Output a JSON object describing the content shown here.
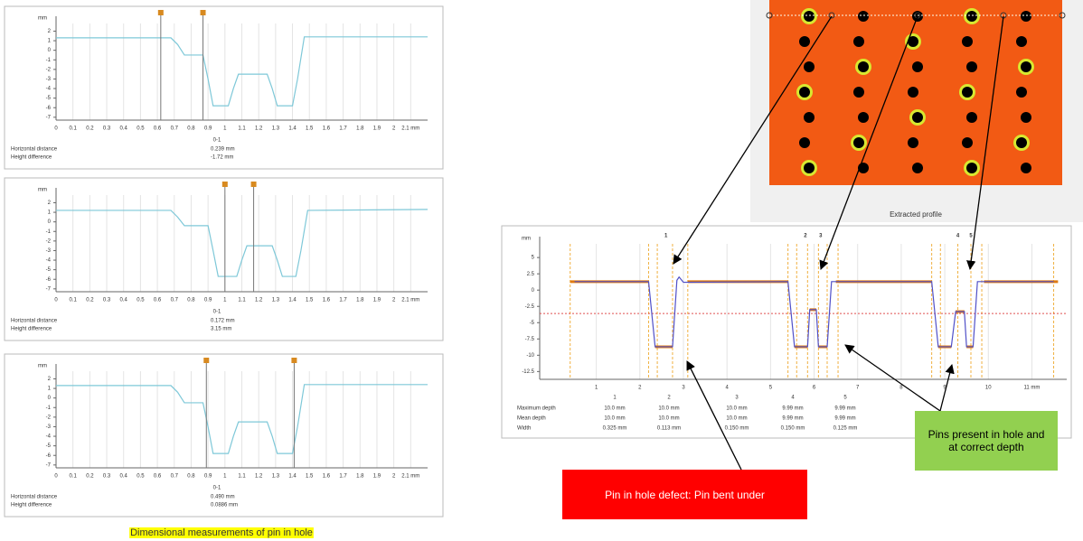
{
  "chart_data": [
    {
      "type": "line",
      "y_unit": "mm",
      "grid": true,
      "xlim": [
        0,
        2.2
      ],
      "ylim": [
        -7.3,
        2.8
      ],
      "xticks": [
        0,
        0.1,
        0.2,
        0.3,
        0.4,
        0.5,
        0.6,
        0.7,
        0.8,
        0.9,
        1,
        1.1,
        1.2,
        1.3,
        1.4,
        1.5,
        1.6,
        1.7,
        1.8,
        1.9,
        2,
        {
          "value": 2.1,
          "label": "2.1 mm"
        }
      ],
      "yticks": [
        2,
        1,
        0,
        -1,
        -2,
        -3,
        -4,
        -5,
        -6,
        -7
      ],
      "series": [
        {
          "color": "#7ec8d8",
          "x": [
            0,
            0.68,
            0.72,
            0.76,
            0.87,
            0.9,
            0.93,
            1.02,
            1.05,
            1.08,
            1.25,
            1.28,
            1.31,
            1.4,
            1.43,
            1.47,
            2.2
          ],
          "values": [
            1.3,
            1.3,
            0.6,
            -0.5,
            -0.5,
            -3,
            -5.8,
            -5.8,
            -4,
            -2.5,
            -2.5,
            -4,
            -5.8,
            -5.8,
            -3,
            1.4,
            1.4
          ]
        }
      ],
      "cursors": [
        0.62,
        0.87
      ],
      "measurement": {
        "label": "0-1",
        "rows": [
          [
            "Horizontal distance",
            "0.239 mm"
          ],
          [
            "Height difference",
            "-1.72 mm"
          ]
        ]
      }
    },
    {
      "type": "line",
      "y_unit": "mm",
      "grid": true,
      "xlim": [
        0,
        2.2
      ],
      "ylim": [
        -7.3,
        2.8
      ],
      "xticks": [
        0,
        0.1,
        0.2,
        0.3,
        0.4,
        0.5,
        0.6,
        0.7,
        0.8,
        0.9,
        1,
        1.1,
        1.2,
        1.3,
        1.4,
        1.5,
        1.6,
        1.7,
        1.8,
        1.9,
        2,
        {
          "value": 2.1,
          "label": "2.1 mm"
        }
      ],
      "yticks": [
        2,
        1,
        0,
        -1,
        -2,
        -3,
        -4,
        -5,
        -6,
        -7
      ],
      "series": [
        {
          "color": "#7ec8d8",
          "x": [
            0,
            0.68,
            0.72,
            0.76,
            0.9,
            0.93,
            0.96,
            1.07,
            1.1,
            1.13,
            1.28,
            1.31,
            1.34,
            1.42,
            1.45,
            1.49,
            2.2
          ],
          "values": [
            1.2,
            1.2,
            0.5,
            -0.4,
            -0.4,
            -3,
            -5.7,
            -5.7,
            -4,
            -2.5,
            -2.5,
            -4,
            -5.7,
            -5.7,
            -3,
            1.2,
            1.3
          ]
        }
      ],
      "cursors": [
        1.0,
        1.17
      ],
      "measurement": {
        "label": "0-1",
        "rows": [
          [
            "Horizontal distance",
            "0.172 mm"
          ],
          [
            "Height difference",
            "3.15 mm"
          ]
        ]
      }
    },
    {
      "type": "line",
      "y_unit": "mm",
      "grid": true,
      "xlim": [
        0,
        2.2
      ],
      "ylim": [
        -7.3,
        2.8
      ],
      "xticks": [
        0,
        0.1,
        0.2,
        0.3,
        0.4,
        0.5,
        0.6,
        0.7,
        0.8,
        0.9,
        1,
        1.1,
        1.2,
        1.3,
        1.4,
        1.5,
        1.6,
        1.7,
        1.8,
        1.9,
        2,
        {
          "value": 2.1,
          "label": "2.1 mm"
        }
      ],
      "yticks": [
        2,
        1,
        0,
        -1,
        -2,
        -3,
        -4,
        -5,
        -6,
        -7
      ],
      "series": [
        {
          "color": "#7ec8d8",
          "x": [
            0,
            0.68,
            0.72,
            0.76,
            0.87,
            0.9,
            0.93,
            1.02,
            1.05,
            1.08,
            1.25,
            1.28,
            1.31,
            1.4,
            1.43,
            1.47,
            2.2
          ],
          "values": [
            1.3,
            1.3,
            0.6,
            -0.5,
            -0.5,
            -3,
            -5.8,
            -5.8,
            -4,
            -2.5,
            -2.5,
            -4,
            -5.8,
            -5.8,
            -3,
            1.4,
            1.4
          ]
        }
      ],
      "cursors": [
        0.89,
        1.41
      ],
      "measurement": {
        "label": "0-1",
        "rows": [
          [
            "Horizontal distance",
            "0.490 mm"
          ],
          [
            "Height difference",
            "0.0886 mm"
          ]
        ]
      }
    },
    {
      "type": "line",
      "y_unit": "mm",
      "grid": true,
      "xlim": [
        -0.3,
        11.8
      ],
      "ylim": [
        -13.7,
        7.1
      ],
      "xticks": [
        1,
        2,
        3,
        4,
        5,
        6,
        7,
        8,
        9,
        10,
        {
          "value": 11,
          "label": "11 mm"
        }
      ],
      "yticks": [
        5,
        2.5,
        0,
        -2.5,
        -5,
        -7.5,
        -10,
        -12.5
      ],
      "series": [
        {
          "color": "#e07b10",
          "x": [
            0.4,
            2.2,
            null,
            2.35,
            2.75,
            null,
            3.1,
            5.4,
            null,
            5.55,
            5.85,
            null,
            5.9,
            6.05,
            null,
            6.1,
            6.3,
            null,
            6.5,
            8.7,
            null,
            8.85,
            9.15,
            null,
            9.25,
            9.45,
            null,
            9.5,
            9.65,
            null,
            9.9,
            11.6
          ],
          "values": [
            1.3,
            1.3,
            null,
            -8.7,
            -8.7,
            null,
            1.3,
            1.3,
            null,
            -8.7,
            -8.7,
            null,
            -3,
            -3,
            null,
            -8.7,
            -8.7,
            null,
            1.3,
            1.3,
            null,
            -8.7,
            -8.7,
            null,
            -3.3,
            -3.3,
            null,
            -8.7,
            -8.7,
            null,
            1.3,
            1.3
          ]
        },
        {
          "color": "#5050c8",
          "x": [
            0.5,
            2.2,
            2.35,
            2.75,
            2.85,
            2.9,
            3,
            5.4,
            5.55,
            5.85,
            5.9,
            6.05,
            6.1,
            6.3,
            6.4,
            8.7,
            8.85,
            9.15,
            9.25,
            9.45,
            9.5,
            9.65,
            9.75,
            11.5
          ],
          "values": [
            1.3,
            1.3,
            -8.7,
            -8.7,
            1.5,
            2.0,
            1.2,
            1.3,
            -8.7,
            -8.7,
            -3,
            -3,
            -8.7,
            -8.7,
            1.3,
            1.3,
            -8.7,
            -8.7,
            -3.3,
            -3.3,
            -8.7,
            -8.7,
            1.3,
            1.3
          ]
        }
      ],
      "reference_lines": [
        {
          "value": -3.6,
          "color": "#e05050"
        }
      ],
      "markers": [
        0.4,
        2.2,
        2.4,
        2.75,
        3.1,
        5.4,
        5.6,
        5.85,
        6.1,
        6.3,
        6.55,
        8.7,
        8.9,
        9.3,
        9.6,
        9.85,
        11.5
      ],
      "annotations": [
        {
          "text": "1",
          "x": 2.6
        },
        {
          "text": "2",
          "x": 5.8
        },
        {
          "text": "3",
          "x": 6.15
        },
        {
          "text": "4",
          "x": 9.3
        },
        {
          "text": "5",
          "x": 9.6
        }
      ],
      "measurement_table": {
        "columns": [
          "1",
          "2",
          "3",
          "4",
          "5"
        ],
        "rows": [
          {
            "label": "Maximum depth",
            "cells": [
              "10.0 mm",
              "10.0 mm",
              "10.0 mm",
              "9.99 mm",
              "9.99 mm"
            ]
          },
          {
            "label": "Mean depth",
            "cells": [
              "10.0 mm",
              "10.0 mm",
              "10.0 mm",
              "9.99 mm",
              "9.99 mm"
            ]
          },
          {
            "label": "Width",
            "cells": [
              "0.325 mm",
              "0.113 mm",
              "0.150 mm",
              "0.150 mm",
              "0.125 mm"
            ]
          }
        ]
      }
    }
  ],
  "caption": "Dimensional measurements of pin in hole",
  "image_label": "Extracted profile",
  "callouts": {
    "defect": "Pin in hole defect:  Pin bent under",
    "ok": "Pins present in hole and at correct depth"
  }
}
